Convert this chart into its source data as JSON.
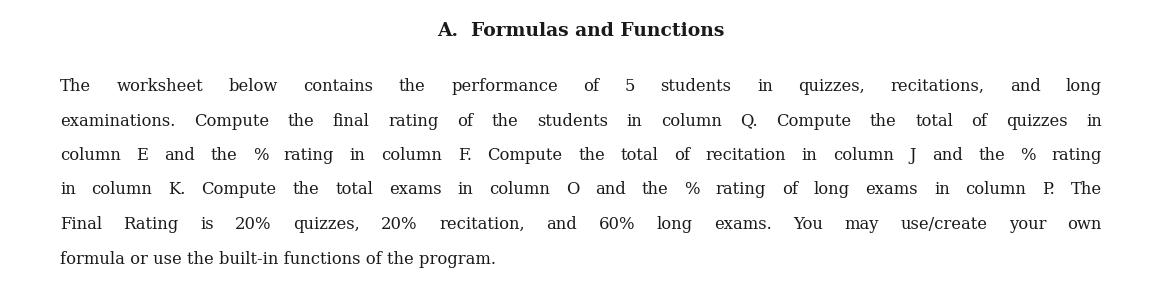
{
  "title": "A.  Formulas and Functions",
  "lines": [
    "The worksheet below contains the performance of 5 students in quizzes, recitations, and long",
    "examinations. Compute the final rating of the students in column Q. Compute the total of quizzes in",
    "column E and the % rating in column F. Compute the total of recitation in column J and the % rating",
    "in column K. Compute the total exams in column O and the % rating of long exams in column P. The",
    "Final Rating is 20% quizzes, 20% recitation, and 60% long exams. You may use/create your own",
    "formula or use the built-in functions of the program."
  ],
  "background_color": "#ffffff",
  "text_color": "#1a1a1a",
  "title_fontsize": 13.5,
  "body_fontsize": 11.8,
  "fig_width": 11.62,
  "fig_height": 2.98,
  "dpi": 100
}
